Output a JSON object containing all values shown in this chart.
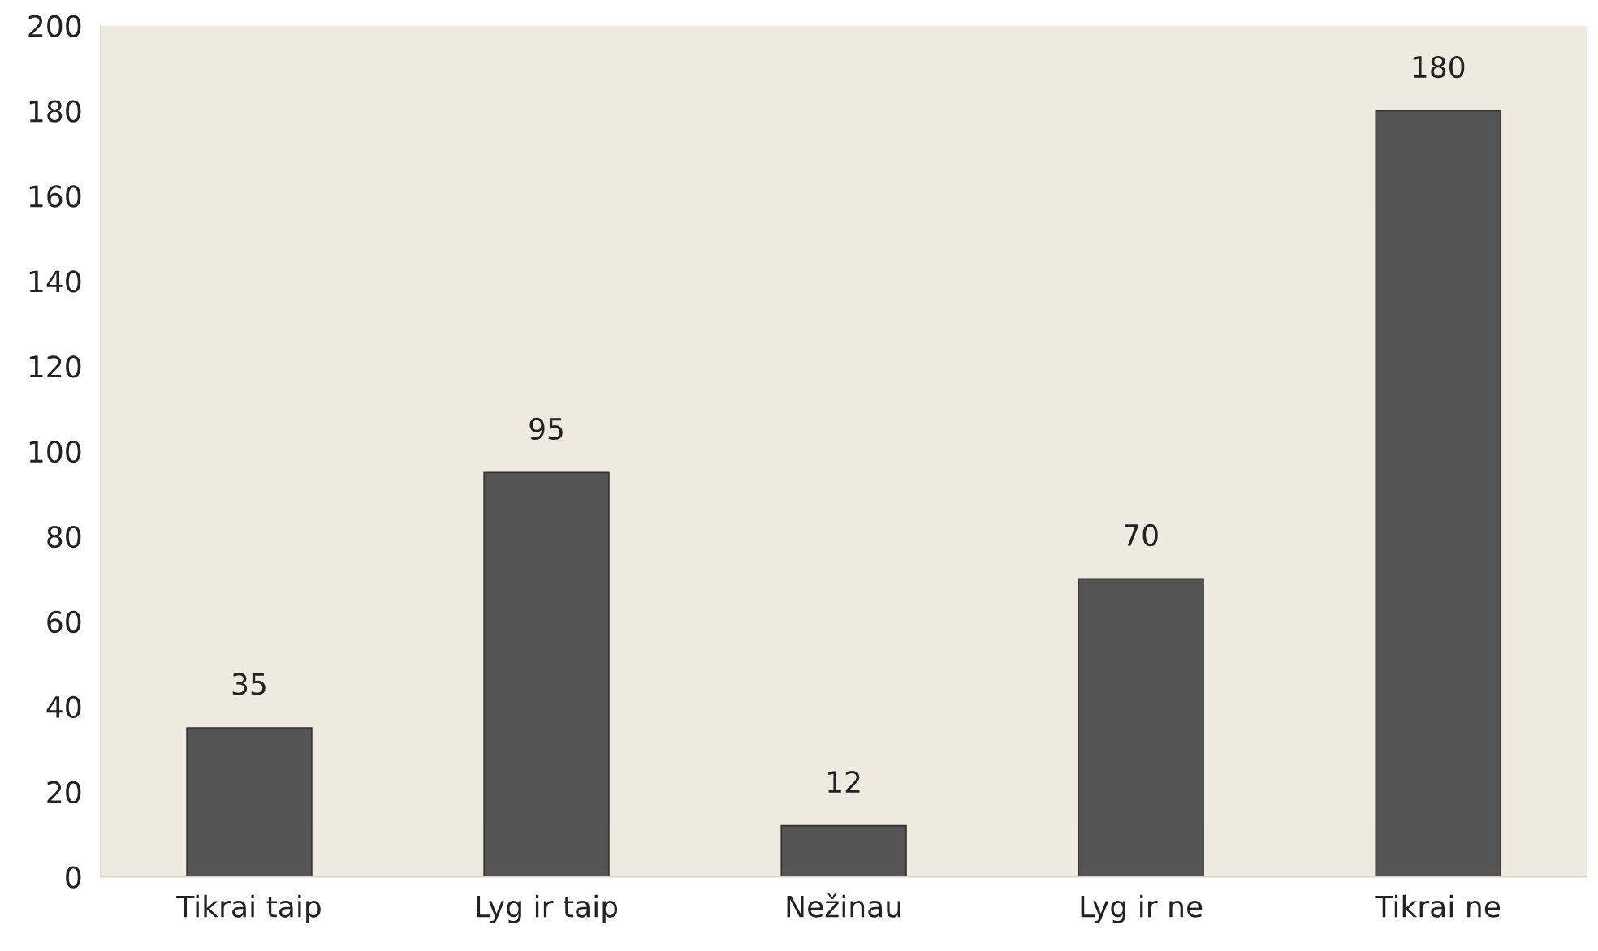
{
  "chart_data": {
    "type": "bar",
    "categories": [
      "Tikrai taip",
      "Lyg ir taip",
      "Nežinau",
      "Lyg ir ne",
      "Tikrai ne"
    ],
    "values": [
      35,
      95,
      12,
      70,
      180
    ],
    "color": "#555555",
    "ylim": [
      0,
      200
    ],
    "yticks": [
      0,
      20,
      40,
      60,
      80,
      100,
      120,
      140,
      160,
      180,
      200
    ],
    "grid": false,
    "data_labels": true
  }
}
